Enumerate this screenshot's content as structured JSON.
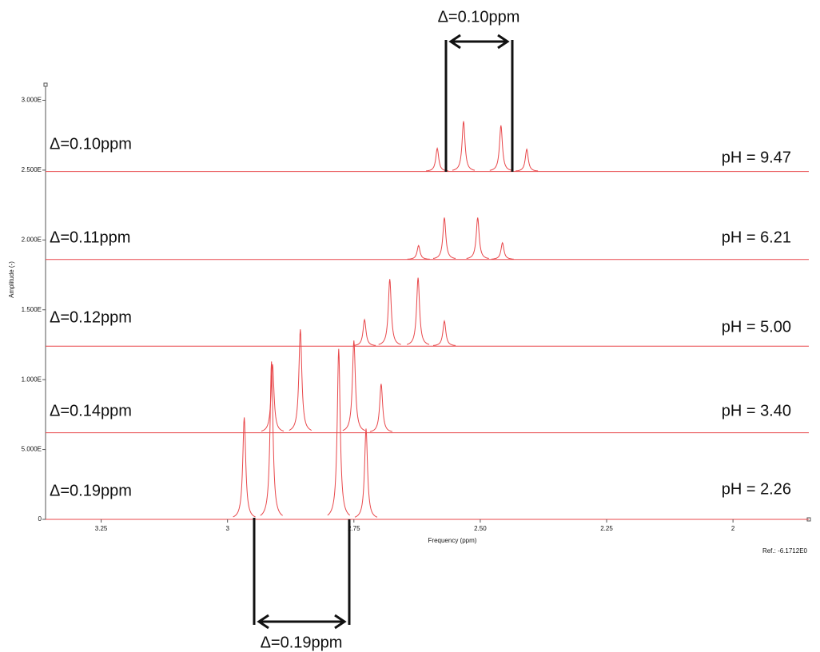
{
  "chart_data": {
    "type": "spectra",
    "xlabel": "Frequency (ppm)",
    "ylabel": "Amplitude (-)",
    "ref": "Ref.: -6.1712E0",
    "xlim": [
      3.36,
      1.85
    ],
    "xticks": [
      3.25,
      3,
      2.75,
      {
        "value": 2.5,
        "label": "2.50"
      },
      2.25,
      2
    ],
    "ylim": [
      0,
      31
    ],
    "yticks": [
      0,
      {
        "value": 5,
        "label": "5.000E"
      },
      {
        "value": 10,
        "label": "1.000E"
      },
      {
        "value": 15,
        "label": "1.500E"
      },
      {
        "value": 20,
        "label": "2.000E"
      },
      {
        "value": 25,
        "label": "2.500E"
      },
      {
        "value": 30,
        "label": "3.000E"
      }
    ],
    "color": "#e8474a",
    "top_annotation": "Δ=0.10ppm",
    "bottom_annotation": "Δ=0.19ppm",
    "series": [
      {
        "name": "pH = 9.47",
        "delta": "Δ=0.10ppm",
        "baseline": 24.9,
        "peaks_ppm": [
          2.585,
          2.533,
          2.459,
          2.408
        ],
        "peaks_height": [
          1.66,
          3.6,
          3.3,
          1.6
        ]
      },
      {
        "name": "pH = 6.21",
        "delta": "Δ=0.11ppm",
        "baseline": 18.6,
        "peaks_ppm": [
          2.622,
          2.571,
          2.505,
          2.456
        ],
        "peaks_height": [
          1.0,
          3.0,
          3.0,
          1.2
        ]
      },
      {
        "name": "pH = 5.00",
        "delta": "Δ=0.12ppm",
        "baseline": 12.4,
        "peaks_ppm": [
          2.729,
          2.679,
          2.623,
          2.571
        ],
        "peaks_height": [
          1.9,
          4.8,
          4.9,
          1.8
        ]
      },
      {
        "name": "pH = 3.40",
        "delta": "Δ=0.14ppm",
        "baseline": 6.2,
        "peaks_ppm": [
          2.911,
          2.856,
          2.75,
          2.696
        ],
        "peaks_height": [
          4.9,
          7.4,
          6.6,
          3.5
        ]
      },
      {
        "name": "pH = 2.26",
        "delta": "Δ=0.19ppm",
        "baseline": 0,
        "peaks_ppm": [
          2.967,
          2.913,
          2.78,
          2.726
        ],
        "peaks_height": [
          7.3,
          11.3,
          12.2,
          6.5
        ]
      }
    ]
  }
}
